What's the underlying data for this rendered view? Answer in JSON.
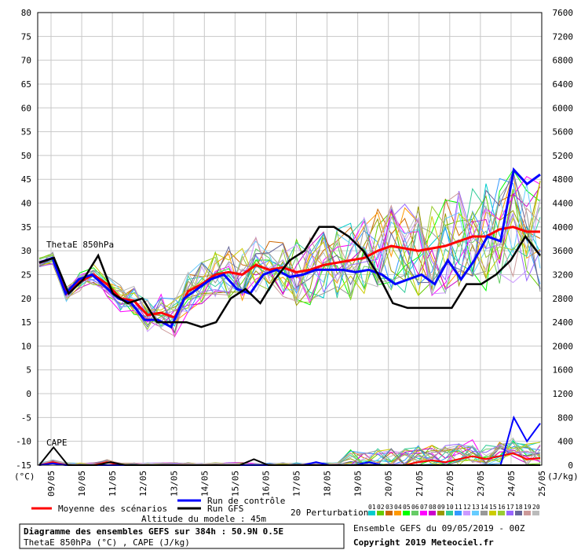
{
  "chart_data": {
    "type": "line",
    "x_dates": [
      "09/05",
      "10/05",
      "11/05",
      "12/05",
      "13/05",
      "14/05",
      "15/05",
      "16/05",
      "17/05",
      "18/05",
      "19/05",
      "20/05",
      "21/05",
      "22/05",
      "23/05",
      "24/05",
      "25/05"
    ],
    "left_axis": {
      "unit": "(°C)",
      "min": -15,
      "max": 80,
      "ticks": [
        -15,
        -10,
        -5,
        0,
        5,
        10,
        15,
        20,
        25,
        30,
        35,
        40,
        45,
        50,
        55,
        60,
        65,
        70,
        75,
        80
      ]
    },
    "right_axis": {
      "unit": "(J/kg)",
      "ticks": [
        0,
        400,
        800,
        1200,
        1600,
        2000,
        2400,
        2800,
        3200,
        3600,
        4000,
        4400,
        4800,
        5200,
        5600,
        6000,
        6400,
        6800,
        7200,
        7600
      ]
    },
    "panel_labels": {
      "theta": "ThetaE 850hPa",
      "cape": "CAPE"
    },
    "grid": true,
    "theta_series": [
      {
        "name": "Moyenne des scénarios",
        "color": "#ff0000",
        "values": [
          27.5,
          28.5,
          21,
          23.5,
          25,
          23,
          20,
          19.5,
          16.5,
          17,
          16,
          21.5,
          23,
          25,
          25.5,
          25,
          27,
          26,
          26.5,
          25.5,
          26,
          27,
          27.5,
          28,
          28.5,
          30,
          31,
          30.5,
          30,
          30.5,
          31,
          32,
          33,
          33,
          34.5,
          35,
          34,
          34
        ]
      },
      {
        "name": "Run de contrôle",
        "color": "#0000ff",
        "values": [
          27.5,
          28.5,
          21,
          24,
          25,
          22.5,
          20,
          19,
          15.5,
          15.5,
          14,
          20,
          22,
          24,
          25,
          22,
          21,
          25,
          26,
          24.5,
          25,
          26,
          26,
          26,
          25.5,
          26,
          25,
          23,
          24,
          25,
          23,
          28,
          24,
          28,
          33,
          32,
          47,
          44,
          46
        ]
      },
      {
        "name": "Run GFS",
        "color": "#000000",
        "values": [
          27.5,
          28.5,
          21,
          24,
          29,
          21,
          19,
          20,
          15,
          15,
          15,
          14,
          15,
          20,
          22,
          19,
          24,
          28,
          30,
          35,
          35,
          33,
          30,
          25,
          19,
          18,
          18,
          18,
          18,
          23,
          23,
          25,
          28,
          33,
          29
        ]
      }
    ],
    "cape_series": [
      {
        "name": "Moyenne des scénarios",
        "values": [
          0,
          50,
          0,
          0,
          0,
          50,
          0,
          0,
          0,
          0,
          0,
          0,
          0,
          0,
          0,
          0,
          0,
          0,
          0,
          0,
          0,
          0,
          0,
          0,
          0,
          0,
          0,
          0,
          50,
          80,
          50,
          100,
          150,
          100,
          150,
          200,
          100,
          120
        ]
      },
      {
        "name": "Run de contrôle",
        "values": [
          0,
          30,
          0,
          0,
          0,
          0,
          0,
          0,
          0,
          0,
          0,
          0,
          0,
          0,
          0,
          0,
          0,
          0,
          0,
          0,
          0,
          50,
          0,
          0,
          0,
          50,
          0,
          0,
          0,
          0,
          0,
          0,
          0,
          0,
          0,
          0,
          800,
          400,
          700
        ]
      },
      {
        "name": "Run GFS",
        "values": [
          0,
          300,
          0,
          0,
          0,
          50,
          0,
          0,
          0,
          0,
          0,
          0,
          0,
          0,
          0,
          100,
          0,
          0,
          0,
          0,
          0,
          0,
          0,
          0,
          0,
          0,
          0,
          0,
          0,
          0,
          0,
          0,
          0,
          0,
          0,
          0
        ]
      }
    ],
    "perturbation_colors": [
      "#00cccc",
      "#66cc00",
      "#cc6600",
      "#ff9900",
      "#00ff00",
      "#66cc66",
      "#ff00ff",
      "#cc00cc",
      "#999900",
      "#33cc99",
      "#3399ff",
      "#cc99ff",
      "#66ccff",
      "#999999",
      "#cccc00",
      "#99cc33",
      "#9966ff",
      "#666699",
      "#cc9999",
      "#bbbbbb"
    ]
  },
  "legend": {
    "mean": "Moyenne des scénarios",
    "control": "Run de contrôle",
    "gfs": "Run GFS",
    "perturbations": "20 Perturbations",
    "pert_numbers": [
      "01",
      "02",
      "03",
      "04",
      "05",
      "06",
      "07",
      "08",
      "09",
      "10",
      "11",
      "12",
      "13",
      "14",
      "15",
      "16",
      "17",
      "18",
      "19",
      "20"
    ]
  },
  "footer": {
    "altitude": "Altitude du modele : 45m",
    "title": "Diagramme des ensembles GEFS sur 384h : 50.9N 0.5E",
    "subtitle": "ThetaE 850hPa (°C) , CAPE (J/kg)",
    "ensemble": "Ensemble GEFS du 09/05/2019 - 00Z",
    "copyright": "Copyright 2019 Meteociel.fr"
  }
}
